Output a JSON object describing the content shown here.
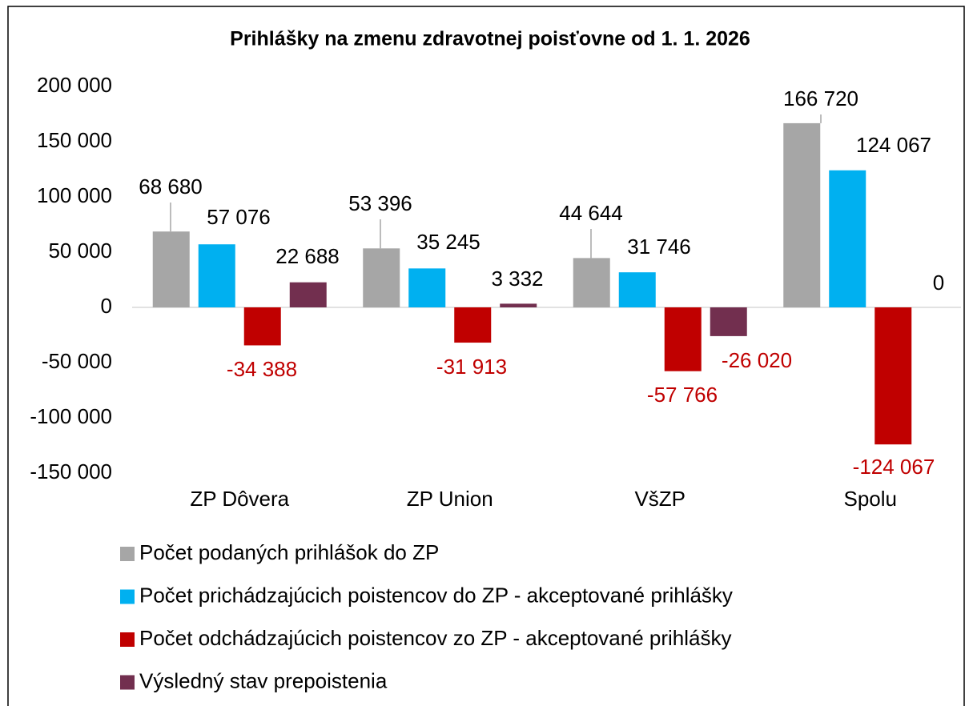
{
  "chart_data": {
    "type": "bar",
    "title": "Prihlášky na zmenu zdravotnej poisťovne od  1. 1. 2026",
    "categories": [
      "ZP Dôvera",
      "ZP Union",
      "VšZP",
      "Spolu"
    ],
    "series": [
      {
        "name": "Počet podaných prihlášok do ZP",
        "color": "#a6a6a6",
        "values": [
          68680,
          53396,
          44644,
          166720
        ],
        "value_labels": [
          "68 680",
          "53 396",
          "44 644",
          "166 720"
        ]
      },
      {
        "name": "Počet prichádzajúcich poistencov do ZP - akceptované prihlášky",
        "color": "#00b0f0",
        "values": [
          57076,
          35245,
          31746,
          124067
        ],
        "value_labels": [
          "57 076",
          "35 245",
          "31 746",
          "124 067"
        ]
      },
      {
        "name": "Počet odchádzajúcich poistencov zo ZP - akceptované prihlášky",
        "color": "#c00000",
        "values": [
          -34388,
          -31913,
          -57766,
          -124067
        ],
        "value_labels": [
          "-34 388",
          "-31 913",
          "-57 766",
          "-124 067"
        ]
      },
      {
        "name": "Výsledný stav prepoistenia",
        "color": "#722f4f",
        "values": [
          22688,
          3332,
          -26020,
          0
        ],
        "value_labels": [
          "22 688",
          "3 332",
          "-26 020",
          "0"
        ]
      }
    ],
    "ylim": [
      -150000,
      200000
    ],
    "yticks": [
      {
        "value": -150000,
        "label": "-150 000"
      },
      {
        "value": -100000,
        "label": "-100 000"
      },
      {
        "value": -50000,
        "label": "-50 000"
      },
      0,
      {
        "value": 50000,
        "label": "50 000"
      },
      {
        "value": 100000,
        "label": "100 000"
      },
      {
        "value": 150000,
        "label": "150 000"
      },
      {
        "value": 200000,
        "label": "200 000"
      }
    ],
    "legend": "bottom"
  }
}
